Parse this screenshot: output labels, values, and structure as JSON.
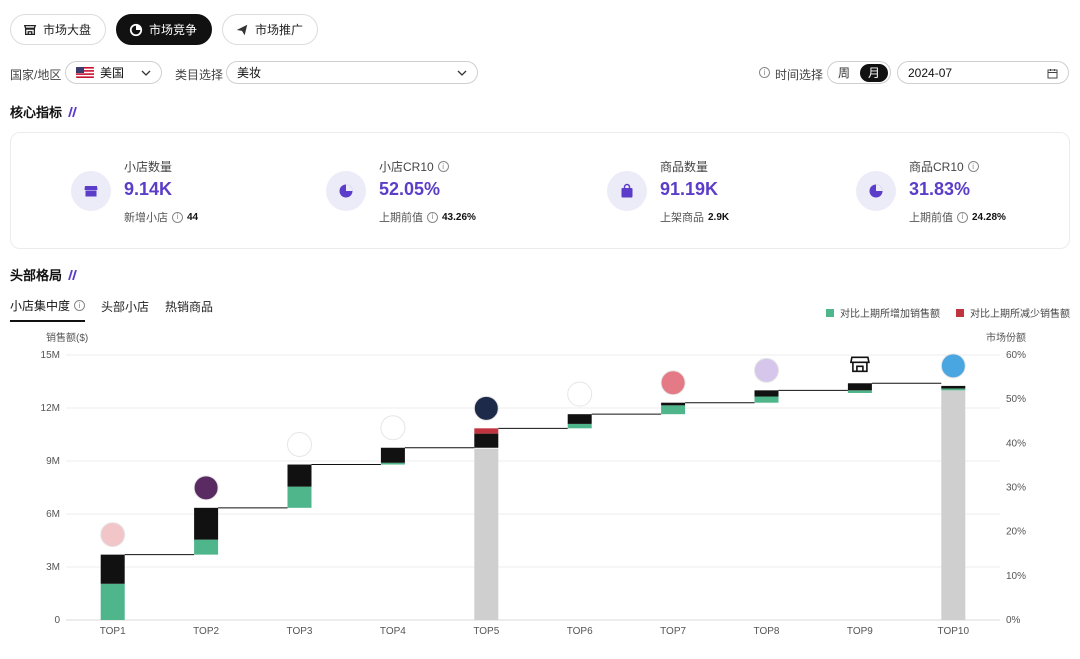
{
  "top_tabs": [
    {
      "label": "市场大盘",
      "icon": "store-icon",
      "active": false
    },
    {
      "label": "市场竞争",
      "icon": "competition-icon",
      "active": true
    },
    {
      "label": "市场推广",
      "icon": "send-icon",
      "active": false
    }
  ],
  "filters": {
    "country_label": "国家/地区",
    "country_value": "美国",
    "country_flag": "us-flag-icon",
    "category_label": "类目选择",
    "category_value": "美妆",
    "time_label": "时间选择",
    "period_options": [
      "周",
      "月"
    ],
    "period_active": "月",
    "date_value": "2024-07"
  },
  "sections": {
    "core_title": "核心指标",
    "head_title": "头部格局"
  },
  "kpis": [
    {
      "label": "小店数量",
      "info": false,
      "value": "9.14K",
      "sub_label": "新增小店",
      "sub_info": true,
      "sub_value": "44",
      "icon": "store-icon"
    },
    {
      "label": "小店CR10",
      "info": true,
      "value": "52.05%",
      "sub_label": "上期前值",
      "sub_info": true,
      "sub_value": "43.26%",
      "icon": "pie-chart-icon"
    },
    {
      "label": "商品数量",
      "info": false,
      "value": "91.19K",
      "sub_label": "上架商品",
      "sub_info": false,
      "sub_value": "2.9K",
      "icon": "shopping-bag-icon"
    },
    {
      "label": "商品CR10",
      "info": true,
      "value": "31.83%",
      "sub_label": "上期前值",
      "sub_info": true,
      "sub_value": "24.28%",
      "icon": "pie-chart-icon"
    }
  ],
  "sub_tabs": [
    {
      "label": "小店集中度",
      "info": true,
      "active": true
    },
    {
      "label": "头部小店",
      "info": false,
      "active": false
    },
    {
      "label": "热销商品",
      "info": false,
      "active": false
    }
  ],
  "legend": [
    {
      "label": "对比上期所增加销售额",
      "color": "#4fb58a"
    },
    {
      "label": "对比上期所减少销售额",
      "color": "#c0343f"
    }
  ],
  "chart_data": {
    "type": "bar",
    "subtype": "waterfall",
    "ylabel": "销售额($)",
    "y2label": "市场份额",
    "ylim": [
      0,
      15000000
    ],
    "y_ticks": [
      "0",
      "3M",
      "6M",
      "9M",
      "12M",
      "15M"
    ],
    "y2lim": [
      0,
      60
    ],
    "y2_ticks": [
      "0%",
      "10%",
      "20%",
      "30%",
      "40%",
      "50%",
      "60%"
    ],
    "categories": [
      "TOP1",
      "TOP2",
      "TOP3",
      "TOP4",
      "TOP5",
      "TOP6",
      "TOP7",
      "TOP8",
      "TOP9",
      "TOP10"
    ],
    "colors": {
      "increase": "#4fb58a",
      "decrease": "#c0343f",
      "previous": "#111111",
      "total": "#cfcfcf",
      "connector": "#111111"
    },
    "bars": [
      {
        "category": "TOP1",
        "base": 0,
        "increase": 2050000,
        "black": 1650000,
        "decrease": 0,
        "cumulative": 3700000,
        "logo": "brand-logo-sis"
      },
      {
        "category": "TOP2",
        "base": 3700000,
        "increase": 850000,
        "black": 1800000,
        "decrease": 0,
        "cumulative": 6350000,
        "logo": "brand-logo-tarte"
      },
      {
        "category": "TOP3",
        "base": 6350000,
        "increase": 1200000,
        "black": 1250000,
        "decrease": 0,
        "cumulative": 8800000,
        "logo": "brand-logo-ache"
      },
      {
        "category": "TOP4",
        "base": 8800000,
        "increase": 100000,
        "black": 850000,
        "decrease": 0,
        "cumulative": 9750000,
        "logo": "brand-logo-coolm"
      },
      {
        "category": "TOP5",
        "base": 9750000,
        "increase": 0,
        "black": 800000,
        "decrease": 300000,
        "cumulative": 10850000,
        "total_bar": 9700000,
        "logo": "brand-logo-5"
      },
      {
        "category": "TOP6",
        "base": 10850000,
        "increase": 250000,
        "black": 550000,
        "decrease": 0,
        "cumulative": 11650000,
        "logo": "brand-logo-6"
      },
      {
        "category": "TOP7",
        "base": 11650000,
        "increase": 500000,
        "black": 150000,
        "decrease": 0,
        "cumulative": 12300000,
        "logo": "brand-logo-benefit"
      },
      {
        "category": "TOP8",
        "base": 12300000,
        "increase": 350000,
        "black": 350000,
        "decrease": 0,
        "cumulative": 13000000,
        "logo": "brand-logo-8"
      },
      {
        "category": "TOP9",
        "base": 12850000,
        "increase": 150000,
        "black": 400000,
        "decrease": 0,
        "cumulative": 13400000,
        "logo": "store-icon"
      },
      {
        "category": "TOP10",
        "base": 13100000,
        "increase": 0,
        "black": 0,
        "decrease": 0,
        "cumulative": 13100000,
        "total_bar": 13000000,
        "logo": "brand-logo-10"
      }
    ]
  }
}
